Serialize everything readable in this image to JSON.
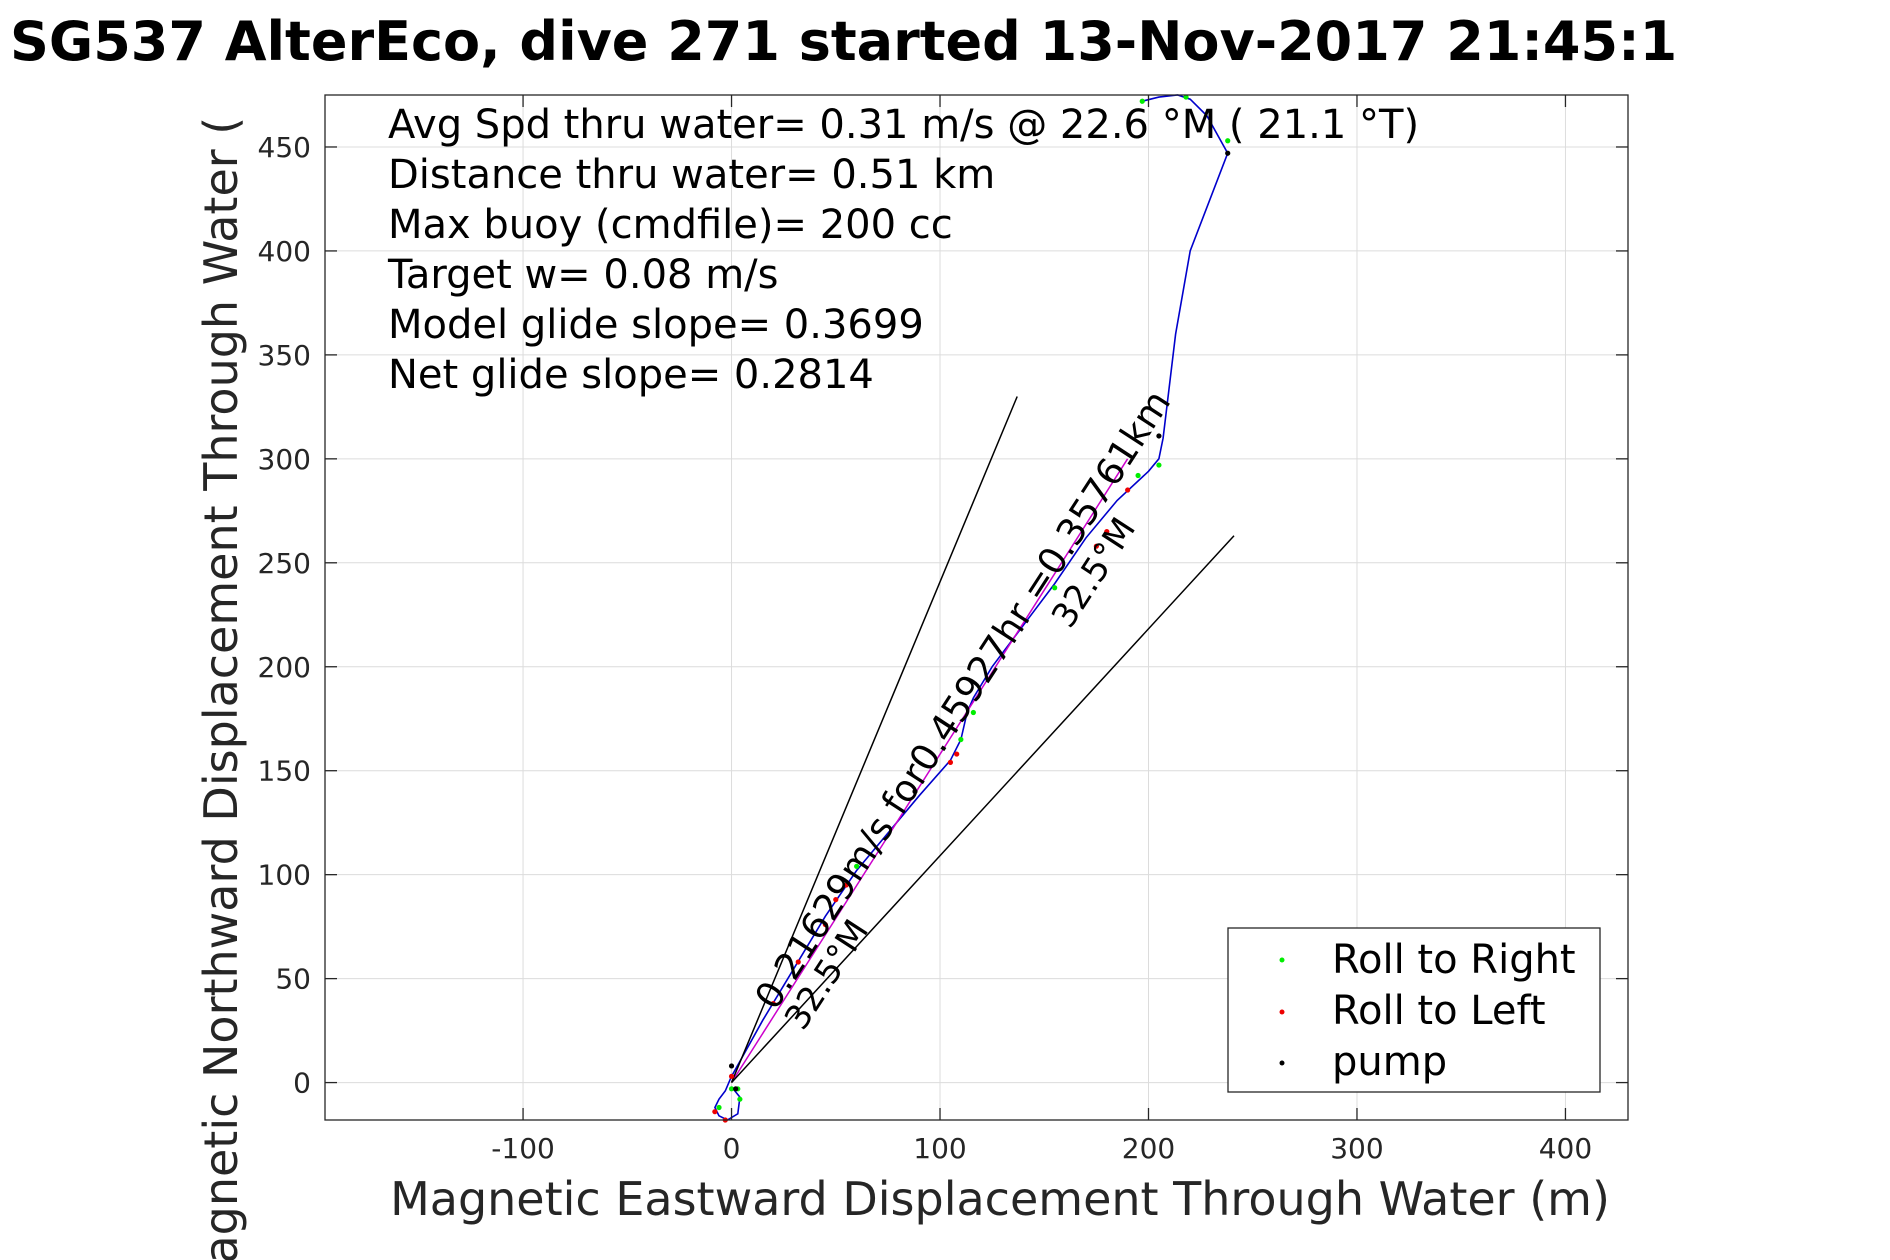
{
  "chart_data": {
    "type": "line",
    "title": "SG537 AlterEco, dive 271 started 13-Nov-2017 21:45:1",
    "xlabel": "Magnetic Eastward Displacement Through Water (m)",
    "ylabel": "Magnetic Northward Displacement Through Water (",
    "xlim": [
      -195,
      430
    ],
    "ylim": [
      -18,
      475
    ],
    "grid": true,
    "x_ticks": [
      -100,
      0,
      100,
      200,
      300,
      400
    ],
    "x_tick_labels": [
      "-100",
      "0",
      "100",
      "200",
      "300",
      "400"
    ],
    "y_ticks": [
      0,
      50,
      100,
      150,
      200,
      250,
      300,
      350,
      400,
      450
    ],
    "y_tick_labels": [
      "0",
      "50",
      "100",
      "150",
      "200",
      "250",
      "300",
      "350",
      "400",
      "450"
    ],
    "annotations": [
      "Avg Spd thru water=  0.31 m/s @  22.6 °M ( 21.1 °T)",
      "Distance thru water=  0.51 km",
      "Max buoy (cmdfile)= 200 cc",
      "Target w= 0.08 m/s",
      "Model glide slope= 0.3699",
      "Net glide slope= 0.2814"
    ],
    "track_label": "0.21629m/s for0.45927hr =0.35761km",
    "heading_labels": [
      "32.5°M",
      "32.5°M"
    ],
    "legend": {
      "placement": "bottom-right",
      "entries": [
        {
          "label": "Roll to Right",
          "color": "#00ee00"
        },
        {
          "label": "Roll to Left",
          "color": "#ee0000"
        },
        {
          "label": "pump",
          "color": "#000000"
        }
      ]
    },
    "series": [
      {
        "role": "track-through-water",
        "color": "#0000cc",
        "x": [
          0,
          4,
          3,
          -2,
          -6,
          -8,
          -6,
          -3,
          0,
          5,
          15,
          30,
          45,
          60,
          75,
          90,
          105,
          110,
          113,
          116,
          125,
          140,
          155,
          170,
          185,
          200,
          205,
          207,
          213,
          220,
          238,
          228,
          220,
          214,
          205,
          197
        ],
        "y": [
          -2,
          -7,
          -15,
          -18,
          -16,
          -12,
          -8,
          -4,
          3,
          12,
          30,
          55,
          80,
          102,
          120,
          138,
          155,
          165,
          178,
          185,
          200,
          220,
          240,
          262,
          280,
          294,
          300,
          310,
          360,
          400,
          447,
          465,
          473,
          475,
          474,
          472
        ]
      },
      {
        "role": "planned-track",
        "color": "#cc00cc",
        "x": [
          0,
          190
        ],
        "y": [
          0,
          300
        ]
      },
      {
        "role": "heading-cone-left",
        "color": "#000000",
        "x": [
          0,
          137
        ],
        "y": [
          0,
          330
        ]
      },
      {
        "role": "heading-cone-right",
        "color": "#000000",
        "x": [
          0,
          241
        ],
        "y": [
          0,
          263
        ]
      }
    ],
    "markers": {
      "roll_right": {
        "color": "#00ee00",
        "x": [
          -6,
          0,
          4,
          60,
          110,
          116,
          155,
          195,
          205,
          197,
          218,
          238,
          3
        ],
        "y": [
          -12,
          -3,
          -8,
          104,
          165,
          178,
          238,
          292,
          297,
          472,
          474,
          453,
          -3
        ]
      },
      "roll_left": {
        "color": "#ee0000",
        "x": [
          -8,
          -3,
          0,
          20,
          32,
          45,
          50,
          55,
          105,
          108,
          175,
          180,
          190
        ],
        "y": [
          -14,
          -18,
          3,
          38,
          58,
          76,
          88,
          95,
          154,
          158,
          258,
          265,
          285
        ]
      },
      "pump": {
        "color": "#000000",
        "x": [
          0,
          88,
          205,
          238,
          2
        ],
        "y": [
          8,
          140,
          311,
          447,
          -3
        ]
      }
    }
  }
}
